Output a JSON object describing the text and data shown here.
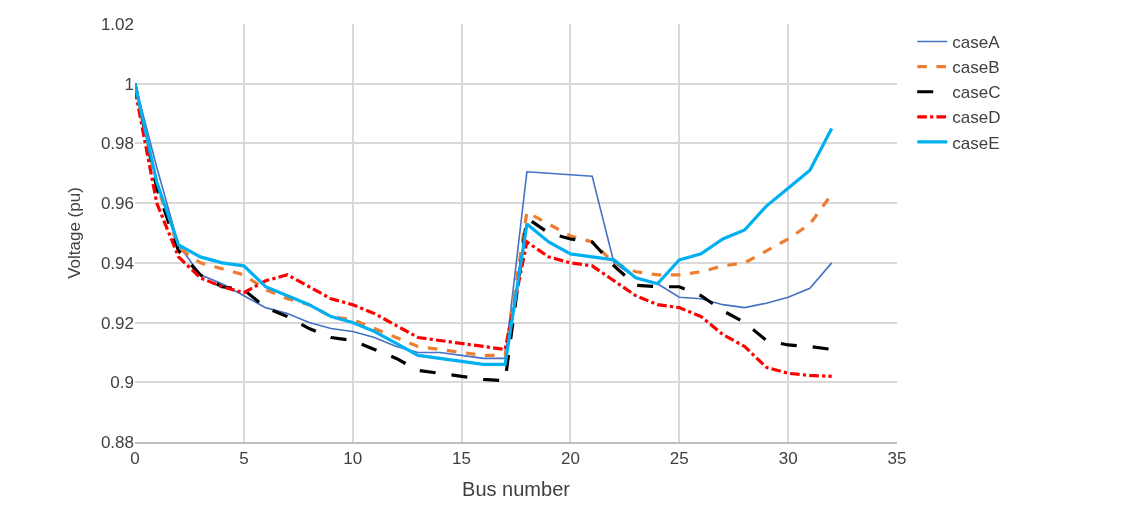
{
  "chart_data": {
    "type": "line",
    "xlabel": "Bus number",
    "ylabel": "Voltage (pu)",
    "x": [
      0,
      1,
      2,
      3,
      4,
      5,
      6,
      7,
      8,
      9,
      10,
      11,
      12,
      13,
      14,
      15,
      16,
      17,
      18,
      19,
      20,
      21,
      22,
      23,
      24,
      25,
      26,
      27,
      28,
      29,
      30,
      31,
      32
    ],
    "xlim": [
      0,
      35
    ],
    "xticks": [
      0,
      5,
      10,
      15,
      20,
      25,
      30,
      35
    ],
    "ylim": [
      0.88,
      1.02
    ],
    "yticks": [
      0.88,
      0.9,
      0.92,
      0.94,
      0.96,
      0.98,
      1,
      1.02
    ],
    "grid": true,
    "legend": "right",
    "marker": "none",
    "series": [
      {
        "name": "caseA",
        "color": "#4472c4",
        "line_style": "solid",
        "values": [
          1.0,
          0.972,
          0.946,
          0.936,
          0.933,
          0.929,
          0.925,
          0.923,
          0.92,
          0.918,
          0.917,
          0.915,
          0.912,
          0.91,
          0.91,
          0.909,
          0.908,
          0.908,
          0.9705,
          0.97,
          0.9695,
          0.969,
          0.94,
          0.935,
          0.933,
          0.9285,
          0.928,
          0.926,
          0.925,
          0.9265,
          0.9285,
          0.9315,
          0.94
        ]
      },
      {
        "name": "caseB",
        "color": "#ed7d31",
        "line_style": "dashed",
        "values": [
          1.0,
          0.966,
          0.945,
          0.94,
          0.938,
          0.936,
          0.931,
          0.928,
          0.926,
          0.922,
          0.921,
          0.918,
          0.915,
          0.912,
          0.911,
          0.91,
          0.909,
          0.909,
          0.957,
          0.953,
          0.949,
          0.947,
          0.94,
          0.937,
          0.936,
          0.936,
          0.937,
          0.939,
          0.94,
          0.944,
          0.948,
          0.953,
          0.963
        ]
      },
      {
        "name": "caseC",
        "color": "#000000",
        "line_style": "long dashed",
        "values": [
          1.0,
          0.965,
          0.944,
          0.936,
          0.932,
          0.931,
          0.925,
          0.922,
          0.918,
          0.915,
          0.914,
          0.911,
          0.908,
          0.904,
          0.903,
          0.902,
          0.901,
          0.9005,
          0.955,
          0.95,
          0.948,
          0.947,
          0.939,
          0.9325,
          0.932,
          0.932,
          0.929,
          0.924,
          0.92,
          0.914,
          0.9125,
          0.912,
          0.911
        ]
      },
      {
        "name": "caseD",
        "color": "#ff0000",
        "line_style": "dash-dot",
        "values": [
          0.998,
          0.96,
          0.942,
          0.935,
          0.932,
          0.93,
          0.934,
          0.936,
          0.932,
          0.928,
          0.926,
          0.923,
          0.919,
          0.915,
          0.914,
          0.913,
          0.912,
          0.911,
          0.947,
          0.942,
          0.94,
          0.939,
          0.934,
          0.929,
          0.926,
          0.925,
          0.922,
          0.916,
          0.912,
          0.905,
          0.903,
          0.9023,
          0.902
        ]
      },
      {
        "name": "caseE",
        "color": "#00b0f0",
        "line_style": "solid",
        "values": [
          1.0,
          0.967,
          0.946,
          0.942,
          0.94,
          0.939,
          0.932,
          0.929,
          0.926,
          0.922,
          0.92,
          0.917,
          0.913,
          0.909,
          0.908,
          0.907,
          0.906,
          0.906,
          0.953,
          0.947,
          0.943,
          0.942,
          0.941,
          0.935,
          0.933,
          0.941,
          0.943,
          0.948,
          0.951,
          0.959,
          0.965,
          0.971,
          0.985
        ]
      }
    ]
  }
}
